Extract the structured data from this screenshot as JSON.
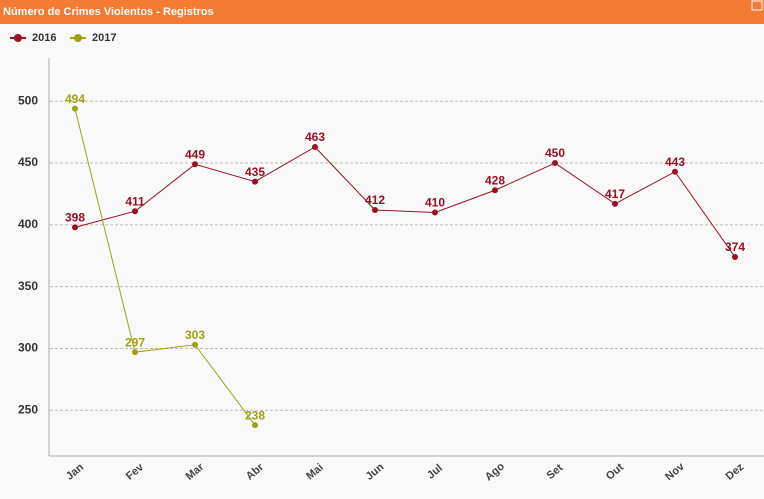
{
  "chart_data": {
    "type": "line",
    "title": "Número de Crimes Violentos - Registros",
    "categories": [
      "Jan",
      "Fev",
      "Mar",
      "Abr",
      "Mai",
      "Jun",
      "Jul",
      "Ago",
      "Set",
      "Out",
      "Nov",
      "Dez"
    ],
    "series": [
      {
        "name": "2016",
        "color": "#9b1020",
        "values": [
          398,
          411,
          449,
          435,
          463,
          412,
          410,
          428,
          450,
          417,
          443,
          374
        ]
      },
      {
        "name": "2017",
        "color": "#a0a012",
        "values": [
          494,
          297,
          303,
          238,
          null,
          null,
          null,
          null,
          null,
          null,
          null,
          null
        ]
      }
    ],
    "ylim": [
      213,
      535
    ],
    "yticks": [
      250,
      300,
      350,
      400,
      450,
      500
    ],
    "grid": true,
    "legend": "top-left"
  }
}
